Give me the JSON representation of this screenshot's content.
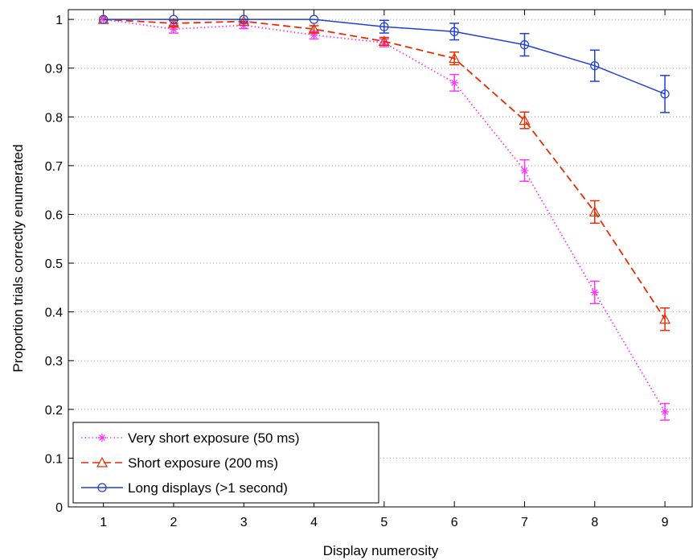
{
  "chart_data": {
    "type": "line",
    "title": "",
    "xlabel": "Display numerosity",
    "ylabel": "Proportion trials correctly enumerated",
    "xlim": [
      0.5,
      9.4
    ],
    "ylim": [
      0,
      1.02
    ],
    "x": [
      1,
      2,
      3,
      4,
      5,
      6,
      7,
      8,
      9
    ],
    "xticks": [
      "1",
      "2",
      "3",
      "4",
      "5",
      "6",
      "7",
      "8",
      "9"
    ],
    "yticks": [
      "0",
      "0.1",
      "0.2",
      "0.3",
      "0.4",
      "0.5",
      "0.6",
      "0.7",
      "0.8",
      "0.9",
      "1"
    ],
    "grid": "horizontal dotted",
    "legend_position": "bottom-left",
    "series": [
      {
        "name": "Very short exposure (50 ms)",
        "color": "#ff33ff",
        "line_style": "dotted",
        "marker": "asterisk",
        "values": [
          1.0,
          0.98,
          0.988,
          0.968,
          0.952,
          0.87,
          0.69,
          0.44,
          0.195
        ],
        "errors": [
          null,
          0.008,
          0.007,
          0.008,
          0.008,
          0.017,
          0.022,
          0.023,
          0.017
        ]
      },
      {
        "name": "Short exposure (200 ms)",
        "color": "#e62e00",
        "line_style": "dashed",
        "marker": "triangle",
        "values": [
          1.0,
          0.992,
          0.996,
          0.98,
          0.955,
          0.92,
          0.793,
          0.605,
          0.385
        ],
        "errors": [
          null,
          0.006,
          0.004,
          0.007,
          0.008,
          0.013,
          0.017,
          0.023,
          0.023
        ]
      },
      {
        "name": "Long displays (>1 second)",
        "color": "#1f3fd9",
        "line_style": "solid",
        "marker": "circle",
        "values": [
          1.0,
          1.0,
          1.0,
          1.0,
          0.985,
          0.975,
          0.948,
          0.905,
          0.847
        ],
        "errors": [
          null,
          null,
          null,
          null,
          0.013,
          0.017,
          0.023,
          0.032,
          0.038
        ]
      }
    ]
  }
}
